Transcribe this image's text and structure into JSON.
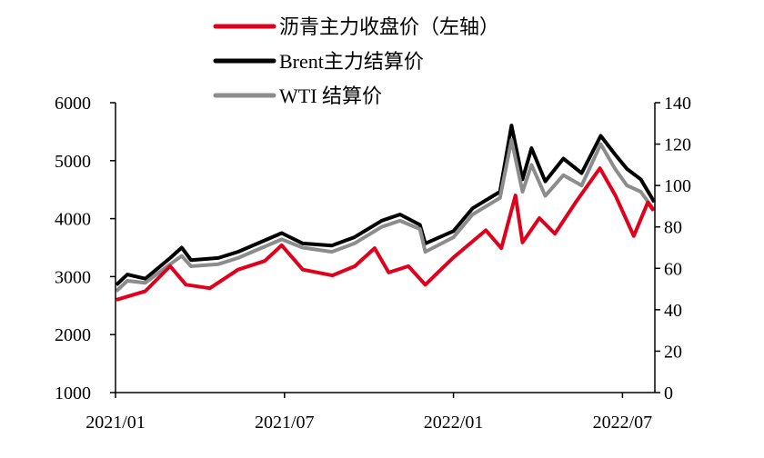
{
  "chart_data": {
    "type": "line",
    "title": "",
    "legend_position": "top",
    "x_unit": "months since 2021/01",
    "x_ticks": [
      {
        "label": "2021/01",
        "month": 0
      },
      {
        "label": "2021/07",
        "month": 6
      },
      {
        "label": "2022/01",
        "month": 12
      },
      {
        "label": "2022/07",
        "month": 18
      }
    ],
    "x_range": [
      0,
      19.15
    ],
    "left_axis": {
      "range": [
        1000,
        6000
      ],
      "ticks": [
        "1000",
        "2000",
        "3000",
        "4000",
        "5000",
        "6000"
      ]
    },
    "right_axis": {
      "range": [
        0,
        140
      ],
      "ticks": [
        "0",
        "20",
        "40",
        "60",
        "80",
        "100",
        "120",
        "140"
      ]
    },
    "grid": false,
    "series": [
      {
        "name": "沥青主力收盘价（左轴）",
        "axis": "left",
        "color": "#e0001b",
        "points": [
          [
            0.03,
            2600
          ],
          [
            1.06,
            2750
          ],
          [
            1.94,
            3180
          ],
          [
            2.5,
            2860
          ],
          [
            3.35,
            2800
          ],
          [
            4.35,
            3120
          ],
          [
            5.3,
            3270
          ],
          [
            5.9,
            3540
          ],
          [
            6.65,
            3120
          ],
          [
            7.7,
            3020
          ],
          [
            8.5,
            3180
          ],
          [
            9.2,
            3490
          ],
          [
            9.7,
            3070
          ],
          [
            10.4,
            3180
          ],
          [
            11.0,
            2860
          ],
          [
            12.0,
            3330
          ],
          [
            13.15,
            3800
          ],
          [
            13.7,
            3490
          ],
          [
            14.2,
            4400
          ],
          [
            14.45,
            3590
          ],
          [
            15.05,
            4010
          ],
          [
            15.6,
            3740
          ],
          [
            16.35,
            4290
          ],
          [
            17.2,
            4870
          ],
          [
            17.75,
            4400
          ],
          [
            18.4,
            3700
          ],
          [
            18.9,
            4280
          ],
          [
            19.1,
            4140
          ]
        ]
      },
      {
        "name": "Brent主力结算价",
        "axis": "right",
        "color": "#000000",
        "points": [
          [
            0.03,
            52
          ],
          [
            0.42,
            57
          ],
          [
            1.06,
            55
          ],
          [
            1.94,
            65
          ],
          [
            2.35,
            70
          ],
          [
            2.68,
            64
          ],
          [
            3.65,
            65
          ],
          [
            4.35,
            68
          ],
          [
            5.9,
            77
          ],
          [
            6.65,
            72
          ],
          [
            7.68,
            71
          ],
          [
            8.48,
            75
          ],
          [
            9.45,
            83
          ],
          [
            10.1,
            86
          ],
          [
            10.81,
            81
          ],
          [
            11.0,
            72
          ],
          [
            12.0,
            78
          ],
          [
            12.68,
            89
          ],
          [
            13.65,
            97
          ],
          [
            14.06,
            129
          ],
          [
            14.45,
            103
          ],
          [
            14.77,
            118
          ],
          [
            15.26,
            102
          ],
          [
            15.9,
            113
          ],
          [
            16.55,
            106
          ],
          [
            17.23,
            124
          ],
          [
            17.74,
            115
          ],
          [
            18.16,
            108
          ],
          [
            18.65,
            103
          ],
          [
            19.13,
            92
          ]
        ]
      },
      {
        "name": "WTI 结算价",
        "axis": "right",
        "color": "#8c8c8c",
        "points": [
          [
            0.03,
            49
          ],
          [
            0.42,
            54
          ],
          [
            1.06,
            53
          ],
          [
            1.94,
            62
          ],
          [
            2.35,
            66
          ],
          [
            2.68,
            61
          ],
          [
            3.65,
            62
          ],
          [
            4.35,
            65
          ],
          [
            5.9,
            74
          ],
          [
            6.65,
            70
          ],
          [
            7.68,
            68
          ],
          [
            8.48,
            72
          ],
          [
            9.45,
            80
          ],
          [
            10.1,
            83
          ],
          [
            10.81,
            79
          ],
          [
            11.0,
            68
          ],
          [
            12.0,
            75
          ],
          [
            12.68,
            86
          ],
          [
            13.65,
            94
          ],
          [
            14.06,
            122
          ],
          [
            14.45,
            97
          ],
          [
            14.77,
            110
          ],
          [
            15.26,
            95
          ],
          [
            15.9,
            105
          ],
          [
            16.55,
            100
          ],
          [
            17.23,
            120
          ],
          [
            17.74,
            108
          ],
          [
            18.16,
            100
          ],
          [
            18.65,
            97
          ],
          [
            19.13,
            88
          ]
        ]
      }
    ]
  }
}
